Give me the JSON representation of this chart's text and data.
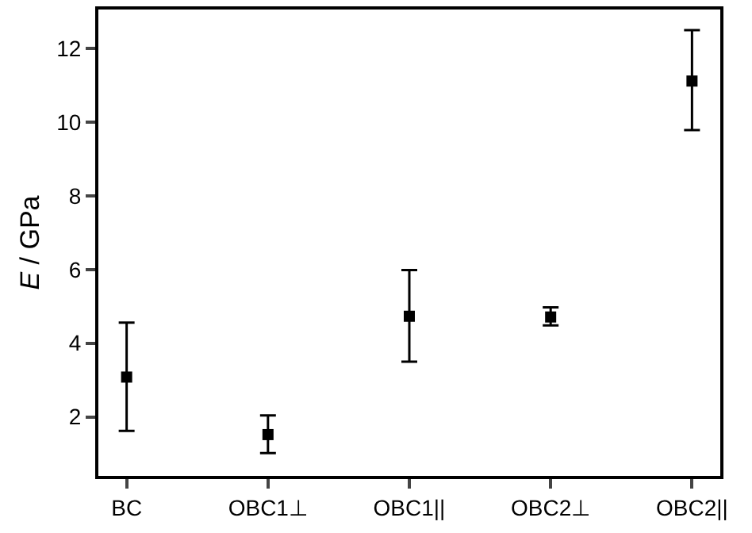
{
  "chart_data": {
    "type": "scatter",
    "ylabel": "E / GPa",
    "categories": [
      "BC",
      "OBC1⊥",
      "OBC1||",
      "OBC2⊥",
      "OBC2||"
    ],
    "series": [
      {
        "color": "#000000",
        "values": [
          3.08,
          1.52,
          4.73,
          4.71,
          11.11
        ],
        "errors": [
          [
            1.62,
            4.56
          ],
          [
            1.02,
            2.04
          ],
          [
            3.5,
            5.98
          ],
          [
            4.48,
            4.97
          ],
          [
            9.78,
            12.49
          ]
        ]
      }
    ],
    "ylim": [
      0.4,
      13.05
    ],
    "yticks": [
      2,
      4,
      6,
      8,
      10,
      12
    ],
    "marker": "square"
  }
}
